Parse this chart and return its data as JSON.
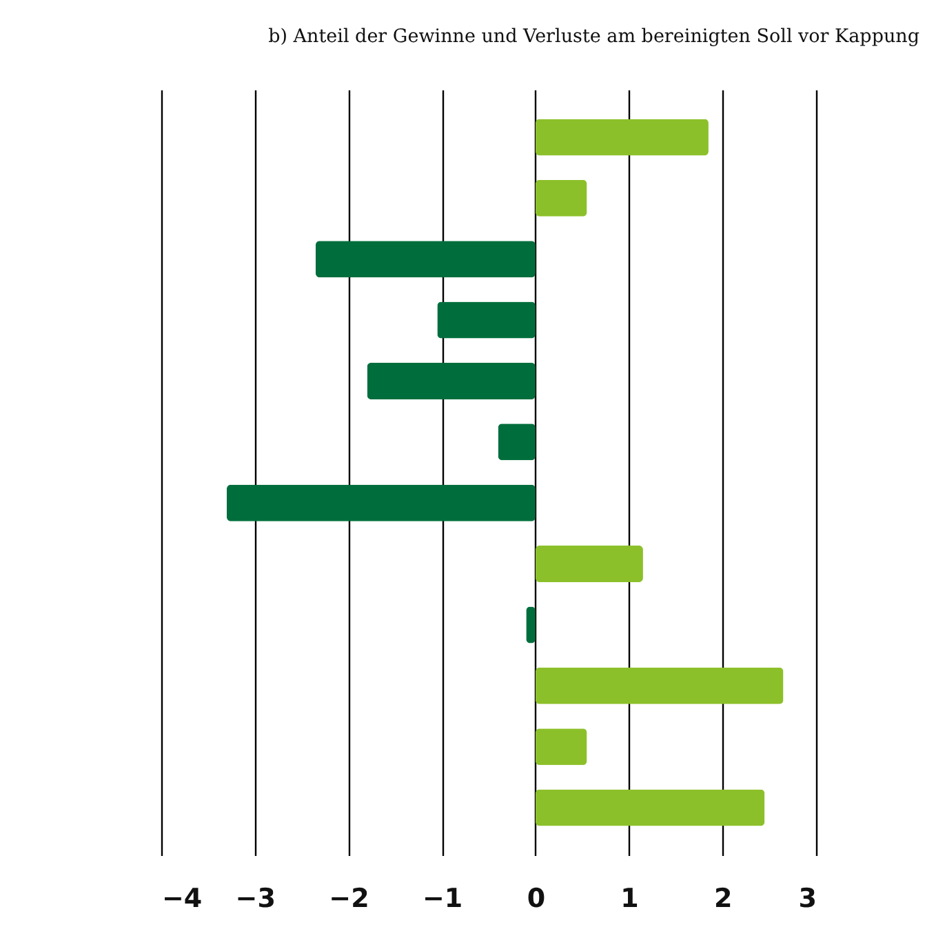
{
  "chart_data": {
    "type": "bar",
    "orientation": "horizontal",
    "title": "b) Anteil der Gewinne und Verluste am bereinigten Soll vor Kappung",
    "categories": [
      null,
      null,
      null,
      null,
      null,
      null,
      null,
      null,
      null,
      null,
      null,
      null
    ],
    "values": [
      1.85,
      0.55,
      -2.35,
      -1.05,
      -1.8,
      -0.4,
      -3.3,
      1.15,
      -0.1,
      2.65,
      0.55,
      2.45
    ],
    "colors": [
      "#8cc02a",
      "#8cc02a",
      "#006e3c",
      "#006e3c",
      "#006e3c",
      "#006e3c",
      "#006e3c",
      "#8cc02a",
      "#006e3c",
      "#8cc02a",
      "#8cc02a",
      "#8cc02a"
    ],
    "xlim": [
      -4,
      3
    ],
    "xticks": [
      -4,
      -3,
      -2,
      -1,
      0,
      1,
      2,
      3
    ],
    "grid": "x"
  }
}
